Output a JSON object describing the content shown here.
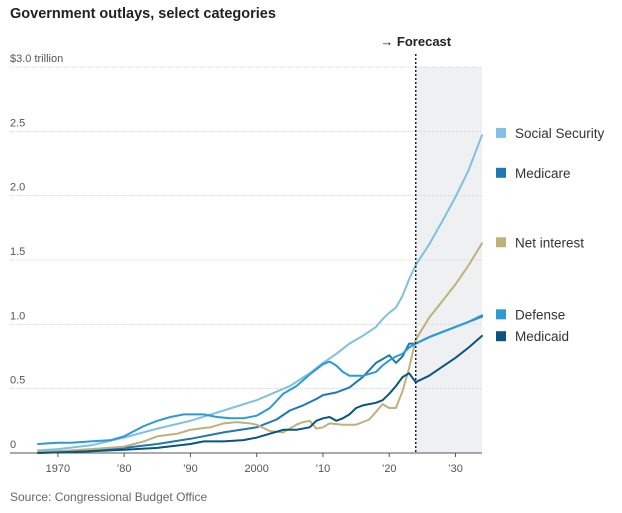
{
  "title": "Government outlays, select categories",
  "source": "Source: Congressional Budget Office",
  "chart_data": {
    "type": "line",
    "title": "Government outlays, select categories",
    "xlabel": "",
    "ylabel": "",
    "ylim": [
      0,
      3.0
    ],
    "xlim": [
      1967,
      2034
    ],
    "grid": true,
    "legend": "right",
    "forecast_start": 2024,
    "forecast_label": "→ Forecast",
    "y_ticks": [
      {
        "value": 3.0,
        "label": "$3.0 trillion"
      },
      {
        "value": 2.5,
        "label": "2.5"
      },
      {
        "value": 2.0,
        "label": "2.0"
      },
      {
        "value": 1.5,
        "label": "1.5"
      },
      {
        "value": 1.0,
        "label": "1.0"
      },
      {
        "value": 0.5,
        "label": "0.5"
      },
      {
        "value": 0,
        "label": "0"
      }
    ],
    "x_ticks": [
      {
        "value": 1970,
        "label": "1970"
      },
      {
        "value": 1980,
        "label": "’80"
      },
      {
        "value": 1990,
        "label": "’90"
      },
      {
        "value": 2000,
        "label": "2000"
      },
      {
        "value": 2010,
        "label": "’10"
      },
      {
        "value": 2020,
        "label": "’20"
      },
      {
        "value": 2030,
        "label": "’30"
      }
    ],
    "series": [
      {
        "name": "Social Security",
        "color": "#7fc0e4",
        "points": [
          [
            1967,
            0.02
          ],
          [
            1970,
            0.03
          ],
          [
            1975,
            0.06
          ],
          [
            1980,
            0.12
          ],
          [
            1985,
            0.19
          ],
          [
            1990,
            0.25
          ],
          [
            1995,
            0.33
          ],
          [
            2000,
            0.41
          ],
          [
            2005,
            0.52
          ],
          [
            2008,
            0.62
          ],
          [
            2010,
            0.7
          ],
          [
            2012,
            0.77
          ],
          [
            2014,
            0.85
          ],
          [
            2016,
            0.91
          ],
          [
            2018,
            0.98
          ],
          [
            2019,
            1.04
          ],
          [
            2020,
            1.09
          ],
          [
            2021,
            1.13
          ],
          [
            2022,
            1.22
          ],
          [
            2023,
            1.35
          ],
          [
            2024,
            1.46
          ],
          [
            2026,
            1.62
          ],
          [
            2028,
            1.8
          ],
          [
            2030,
            1.99
          ],
          [
            2032,
            2.2
          ],
          [
            2034,
            2.47
          ]
        ]
      },
      {
        "name": "Medicare",
        "color": "#1f78b4",
        "points": [
          [
            1967,
            0.0
          ],
          [
            1970,
            0.01
          ],
          [
            1975,
            0.02
          ],
          [
            1980,
            0.04
          ],
          [
            1985,
            0.07
          ],
          [
            1990,
            0.11
          ],
          [
            1995,
            0.16
          ],
          [
            2000,
            0.2
          ],
          [
            2003,
            0.26
          ],
          [
            2005,
            0.33
          ],
          [
            2007,
            0.37
          ],
          [
            2009,
            0.42
          ],
          [
            2010,
            0.45
          ],
          [
            2012,
            0.47
          ],
          [
            2014,
            0.51
          ],
          [
            2016,
            0.59
          ],
          [
            2018,
            0.7
          ],
          [
            2019,
            0.73
          ],
          [
            2020,
            0.76
          ],
          [
            2021,
            0.7
          ],
          [
            2022,
            0.75
          ],
          [
            2023,
            0.85
          ],
          [
            2024,
            0.85
          ],
          [
            2026,
            0.9
          ],
          [
            2028,
            0.94
          ],
          [
            2030,
            0.98
          ],
          [
            2032,
            1.02
          ],
          [
            2034,
            1.06
          ]
        ]
      },
      {
        "name": "Net interest",
        "color": "#bfb17c",
        "points": [
          [
            1967,
            0.01
          ],
          [
            1970,
            0.015
          ],
          [
            1975,
            0.03
          ],
          [
            1980,
            0.05
          ],
          [
            1983,
            0.09
          ],
          [
            1985,
            0.13
          ],
          [
            1988,
            0.15
          ],
          [
            1990,
            0.18
          ],
          [
            1993,
            0.2
          ],
          [
            1995,
            0.23
          ],
          [
            1997,
            0.24
          ],
          [
            1999,
            0.23
          ],
          [
            2000,
            0.22
          ],
          [
            2002,
            0.17
          ],
          [
            2004,
            0.16
          ],
          [
            2006,
            0.22
          ],
          [
            2007,
            0.24
          ],
          [
            2008,
            0.25
          ],
          [
            2009,
            0.19
          ],
          [
            2010,
            0.2
          ],
          [
            2011,
            0.23
          ],
          [
            2013,
            0.22
          ],
          [
            2015,
            0.22
          ],
          [
            2017,
            0.26
          ],
          [
            2018,
            0.32
          ],
          [
            2019,
            0.38
          ],
          [
            2020,
            0.35
          ],
          [
            2021,
            0.35
          ],
          [
            2022,
            0.48
          ],
          [
            2023,
            0.66
          ],
          [
            2024,
            0.88
          ],
          [
            2026,
            1.05
          ],
          [
            2028,
            1.18
          ],
          [
            2030,
            1.31
          ],
          [
            2032,
            1.46
          ],
          [
            2034,
            1.63
          ]
        ]
      },
      {
        "name": "Defense",
        "color": "#2b9ad6",
        "points": [
          [
            1967,
            0.07
          ],
          [
            1970,
            0.08
          ],
          [
            1972,
            0.08
          ],
          [
            1975,
            0.09
          ],
          [
            1978,
            0.1
          ],
          [
            1980,
            0.13
          ],
          [
            1983,
            0.21
          ],
          [
            1985,
            0.25
          ],
          [
            1987,
            0.28
          ],
          [
            1989,
            0.3
          ],
          [
            1990,
            0.3
          ],
          [
            1992,
            0.3
          ],
          [
            1994,
            0.28
          ],
          [
            1996,
            0.27
          ],
          [
            1998,
            0.27
          ],
          [
            2000,
            0.29
          ],
          [
            2002,
            0.35
          ],
          [
            2004,
            0.46
          ],
          [
            2006,
            0.52
          ],
          [
            2008,
            0.61
          ],
          [
            2010,
            0.69
          ],
          [
            2011,
            0.71
          ],
          [
            2012,
            0.68
          ],
          [
            2013,
            0.63
          ],
          [
            2014,
            0.6
          ],
          [
            2016,
            0.6
          ],
          [
            2018,
            0.63
          ],
          [
            2019,
            0.68
          ],
          [
            2020,
            0.72
          ],
          [
            2021,
            0.75
          ],
          [
            2022,
            0.77
          ],
          [
            2023,
            0.82
          ],
          [
            2024,
            0.85
          ],
          [
            2026,
            0.9
          ],
          [
            2028,
            0.94
          ],
          [
            2030,
            0.98
          ],
          [
            2032,
            1.02
          ],
          [
            2034,
            1.07
          ]
        ]
      },
      {
        "name": "Medicaid",
        "color": "#0a5580",
        "points": [
          [
            1967,
            0.0
          ],
          [
            1970,
            0.005
          ],
          [
            1975,
            0.013
          ],
          [
            1980,
            0.025
          ],
          [
            1985,
            0.04
          ],
          [
            1990,
            0.07
          ],
          [
            1992,
            0.09
          ],
          [
            1995,
            0.09
          ],
          [
            1998,
            0.1
          ],
          [
            2000,
            0.12
          ],
          [
            2002,
            0.15
          ],
          [
            2004,
            0.18
          ],
          [
            2006,
            0.18
          ],
          [
            2008,
            0.2
          ],
          [
            2009,
            0.25
          ],
          [
            2010,
            0.27
          ],
          [
            2011,
            0.28
          ],
          [
            2012,
            0.25
          ],
          [
            2013,
            0.27
          ],
          [
            2014,
            0.3
          ],
          [
            2015,
            0.35
          ],
          [
            2016,
            0.37
          ],
          [
            2018,
            0.39
          ],
          [
            2019,
            0.41
          ],
          [
            2020,
            0.46
          ],
          [
            2021,
            0.52
          ],
          [
            2022,
            0.59
          ],
          [
            2023,
            0.62
          ],
          [
            2024,
            0.55
          ],
          [
            2026,
            0.6
          ],
          [
            2028,
            0.67
          ],
          [
            2030,
            0.74
          ],
          [
            2032,
            0.82
          ],
          [
            2034,
            0.91
          ]
        ]
      }
    ],
    "legend_entries": [
      {
        "series": 0,
        "label": "Social Security",
        "y": 2.48
      },
      {
        "series": 1,
        "label": "Medicare",
        "y": 2.17
      },
      {
        "series": 2,
        "label": "Net interest",
        "y": 1.63
      },
      {
        "series": 3,
        "label": "Defense",
        "y": 1.07
      },
      {
        "series": 4,
        "label": "Medicaid",
        "y": 0.9
      }
    ]
  }
}
